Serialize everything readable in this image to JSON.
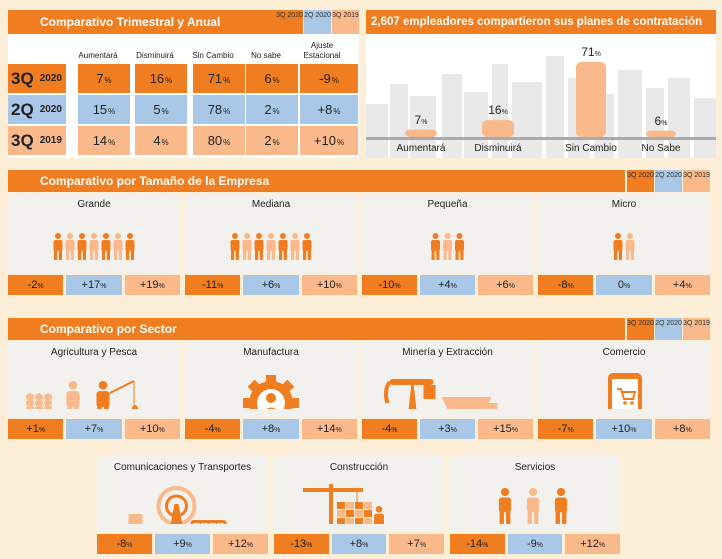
{
  "legend": [
    "3Q 2020",
    "2Q 2020",
    "3Q 2019"
  ],
  "quarterly": {
    "title": "Comparativo Trimestral y Anual",
    "columns": [
      "Aumentará",
      "Disminuirá",
      "Sin Cambio",
      "No sabe",
      "Ajuste Estacional"
    ],
    "rows": [
      {
        "q": "3Q",
        "y": "2020",
        "values": [
          "7",
          "16",
          "71",
          "6",
          "-9"
        ],
        "units": [
          "%",
          "%",
          "%",
          "%",
          "%"
        ]
      },
      {
        "q": "2Q",
        "y": "2020",
        "values": [
          "15",
          "5",
          "78",
          "2",
          "+8"
        ],
        "units": [
          "%",
          "%",
          "%",
          "%",
          "%"
        ]
      },
      {
        "q": "3Q",
        "y": "2019",
        "values": [
          "14",
          "4",
          "80",
          "2",
          "+10"
        ],
        "units": [
          "%",
          "%",
          "%",
          "%",
          "%"
        ]
      }
    ]
  },
  "employers": {
    "title": "2,607 empleadores compartieron sus planes de contratación"
  },
  "chart_data": {
    "type": "bar",
    "title": "2,607 empleadores compartieron sus planes de contratación",
    "categories": [
      "Aumentará",
      "Disminuirá",
      "Sin Cambio",
      "No Sabe"
    ],
    "values": [
      7,
      16,
      71,
      6
    ],
    "unit": "%",
    "ylim": [
      0,
      100
    ]
  },
  "company_size": {
    "title": "Comparativo por Tamaño de la Empresa",
    "cards": [
      {
        "name": "Grande",
        "values": [
          "-2",
          "+17",
          "+19"
        ]
      },
      {
        "name": "Mediana",
        "values": [
          "-11",
          "+6",
          "+10"
        ]
      },
      {
        "name": "Pequeña",
        "values": [
          "-10",
          "+4",
          "+6"
        ]
      },
      {
        "name": "Micro",
        "values": [
          "-8",
          "0",
          "+4"
        ]
      }
    ]
  },
  "sector": {
    "title": "Comparativo por Sector",
    "cards": [
      {
        "name": "Agricultura y Pesca",
        "values": [
          "+1",
          "+7",
          "+10"
        ]
      },
      {
        "name": "Manufactura",
        "values": [
          "-4",
          "+8",
          "+14"
        ]
      },
      {
        "name": "Minería y Extracción",
        "values": [
          "-4",
          "+3",
          "+15"
        ]
      },
      {
        "name": "Comercio",
        "values": [
          "-7",
          "+10",
          "+8"
        ]
      },
      {
        "name": "Comunicaciones y Transportes",
        "values": [
          "-8",
          "+9",
          "+12"
        ]
      },
      {
        "name": "Construcción",
        "values": [
          "-13",
          "+8",
          "+7"
        ]
      },
      {
        "name": "Servicios",
        "values": [
          "-14",
          "-9",
          "+12"
        ]
      }
    ]
  },
  "colors": {
    "q3_2020": "#f07d1f",
    "q2_2020": "#a9c8e8",
    "q3_2019": "#f9b98a",
    "bar": "#f9b98a"
  }
}
